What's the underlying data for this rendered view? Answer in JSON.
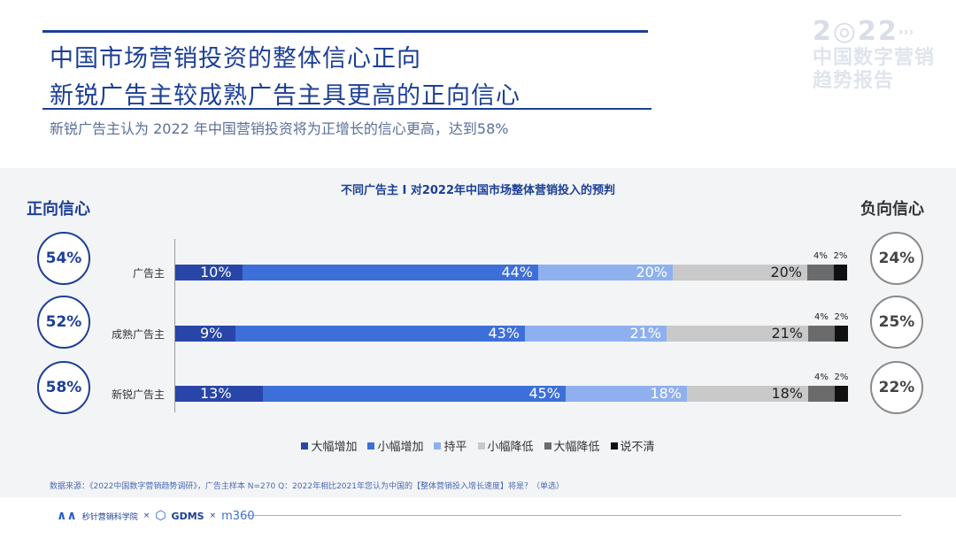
{
  "header": {
    "title_line1": "中国市场营销投资的整体信心正向",
    "title_line2": "新锐广告主较成熟广告主具更高的正向信心",
    "subtitle": "新锐广告主认为 2022 年中国营销投资将为正增长的信心更高，达到58%"
  },
  "brand": {
    "year": "2",
    "year_rest": "22",
    "arrows": "›››",
    "line1": "中国数字营销",
    "line2": "趋势报告"
  },
  "panel": {
    "positive_title": "正向信心",
    "negative_title": "负向信心"
  },
  "chart_data": {
    "type": "bar",
    "orientation": "horizontal",
    "stacked": true,
    "title": "不同广告主 I 对2022年中国市场整体营销投入的预判",
    "categories": [
      "广告主",
      "成熟广告主",
      "新锐广告主"
    ],
    "series": [
      {
        "name": "大幅增加",
        "values": [
          10,
          9,
          13
        ],
        "labels": [
          "10%",
          "9%",
          "13%"
        ],
        "color": "#2846a8"
      },
      {
        "name": "小幅增加",
        "values": [
          44,
          43,
          45
        ],
        "labels": [
          "44%",
          "43%",
          "45%"
        ],
        "color": "#3d6fd8"
      },
      {
        "name": "持平",
        "values": [
          20,
          21,
          18
        ],
        "labels": [
          "20%",
          "21%",
          "18%"
        ],
        "color": "#8fb0ee"
      },
      {
        "name": "小幅降低",
        "values": [
          20,
          21,
          18
        ],
        "labels": [
          "20%",
          "21%",
          "18%"
        ],
        "color": "#c9c9c9"
      },
      {
        "name": "大幅降低",
        "values": [
          4,
          4,
          4
        ],
        "labels": [
          "4%",
          "4%",
          "4%"
        ],
        "color": "#6b6b6b"
      },
      {
        "name": "说不清",
        "values": [
          2,
          2,
          2
        ],
        "labels": [
          "2%",
          "2%",
          "2%"
        ],
        "color": "#111111"
      }
    ],
    "positive_confidence": [
      "54%",
      "52%",
      "58%"
    ],
    "negative_confidence": [
      "24%",
      "25%",
      "22%"
    ],
    "legend_position": "bottom"
  },
  "footer": {
    "source": "数据来源：《2022中国数字营销趋势调研》，广告主样本 N=270    Q：2022年相比2021年您认为中国的【整体营销投入增长速度】将是？（单选）",
    "logo1": "秒针营销科学院",
    "logo2": "GDMS",
    "logo3": "m360",
    "separator": "×"
  }
}
